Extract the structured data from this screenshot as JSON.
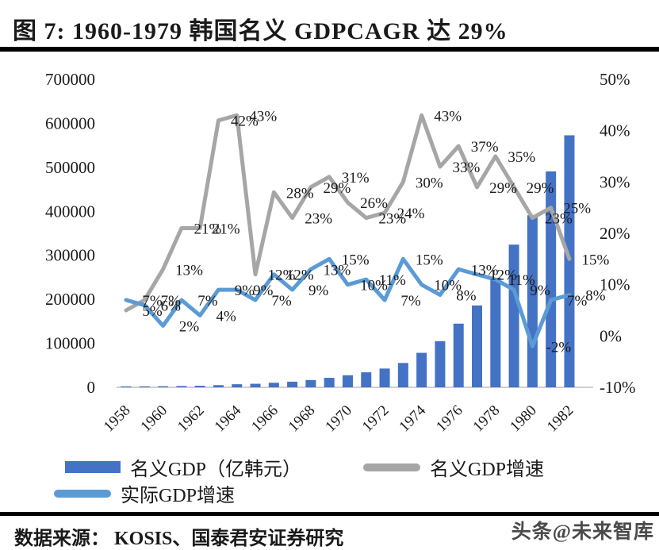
{
  "title": "图 7:  1960-1979 韩国名义 GDPCAGR 达 29%",
  "legend": {
    "nominal_gdp": "名义GDP（亿韩元）",
    "nominal_growth": "名义GDP增速",
    "real_growth": "实际GDP增速"
  },
  "footer": {
    "source": "数据来源： KOSIS、国泰君安证券研究",
    "watermark": "头条@未来智库"
  },
  "colors": {
    "bar": "#4472C4",
    "nominal_growth_line": "#A6A6A6",
    "real_growth_line": "#5B9BD5",
    "axis_line": "#BFBFBF",
    "label_text": "#1a1a1a"
  },
  "chart_data": {
    "type": "bar+line combo",
    "title": "1960-1979 韩国名义 GDPCAGR 达 29%",
    "x": [
      1958,
      1959,
      1960,
      1961,
      1962,
      1963,
      1964,
      1965,
      1966,
      1967,
      1968,
      1969,
      1970,
      1971,
      1972,
      1973,
      1974,
      1975,
      1976,
      1977,
      1978,
      1979,
      1980,
      1981,
      1982
    ],
    "x_ticks": [
      "1958",
      "1960",
      "1962",
      "1964",
      "1966",
      "1968",
      "1970",
      "1972",
      "1974",
      "1976",
      "1978",
      "1980",
      "1982"
    ],
    "series": [
      {
        "name": "名义GDP（亿韩元）",
        "type": "bar",
        "axis": "left",
        "values": [
          2100,
          2200,
          2460,
          2970,
          3490,
          4890,
          6970,
          8050,
          10320,
          12810,
          16530,
          21560,
          27370,
          34070,
          42640,
          55260,
          78380,
          104780,
          144720,
          186080,
          249030,
          324310,
          391100,
          490700,
          572870
        ]
      },
      {
        "name": "名义GDP增速",
        "type": "line",
        "axis": "right",
        "unit": "%",
        "values": [
          5,
          7,
          13,
          21,
          21,
          42,
          43,
          12,
          28,
          23,
          29,
          31,
          26,
          23,
          24,
          30,
          43,
          33,
          37,
          29,
          35,
          29,
          23,
          25,
          15
        ]
      },
      {
        "name": "实际GDP增速",
        "type": "line",
        "axis": "right",
        "unit": "%",
        "values": [
          7,
          6,
          2,
          7,
          4,
          9,
          9,
          7,
          12,
          9,
          13,
          15,
          10,
          11,
          7,
          15,
          10,
          8,
          13,
          12,
          11,
          9,
          -2,
          7,
          8
        ]
      }
    ],
    "left_axis": {
      "min": 0,
      "max": 700000,
      "ticks": [
        700000,
        600000,
        500000,
        400000,
        300000,
        200000,
        100000,
        0
      ]
    },
    "right_axis": {
      "min": -10,
      "max": 50,
      "unit": "%",
      "ticks": [
        50,
        40,
        30,
        20,
        10,
        0,
        -10
      ]
    },
    "grid": false,
    "legend_position": "bottom"
  }
}
